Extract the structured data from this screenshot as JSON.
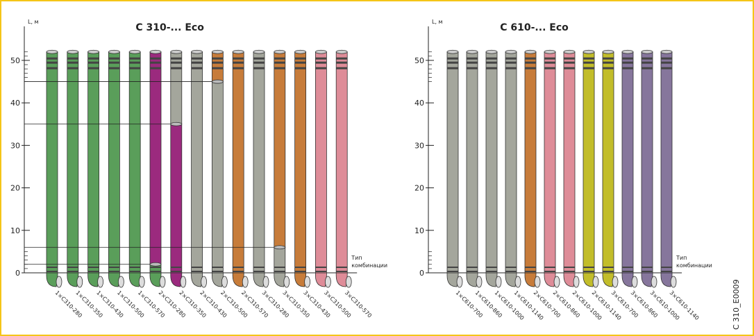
{
  "border_color": "#f5c518",
  "figure_code": "C 310_E0009",
  "chart_data": [
    {
      "type": "pipes",
      "title": "C 310-... Eco",
      "y_label": "L, м",
      "x_label": [
        "Тип",
        "комбинации"
      ],
      "ylim": [
        0,
        58
      ],
      "yticks": [
        0,
        10,
        20,
        30,
        40,
        50
      ],
      "categories": [
        "1×C310-280",
        "1×C310-350",
        "1×C310-430",
        "1×C310-500",
        "1×C310-570",
        "2×C310-280",
        "2×C310-350",
        "2×C310-430",
        "2×C310-500",
        "2×C310-570",
        "3×C310-280",
        "3×C310-350",
        "3×C310-430",
        "3×C310-500",
        "3×C310-570"
      ],
      "pipes": [
        {
          "segments": [
            {
              "value": 52,
              "color": "#5a9e5a"
            }
          ]
        },
        {
          "segments": [
            {
              "value": 52,
              "color": "#5a9e5a"
            }
          ]
        },
        {
          "segments": [
            {
              "value": 52,
              "color": "#5a9e5a"
            }
          ]
        },
        {
          "segments": [
            {
              "value": 52,
              "color": "#5a9e5a"
            }
          ]
        },
        {
          "segments": [
            {
              "value": 52,
              "color": "#5a9e5a"
            }
          ]
        },
        {
          "segments": [
            {
              "value": 2,
              "color": "#5a9e5a"
            },
            {
              "value": 50,
              "color": "#9b2a7e"
            }
          ]
        },
        {
          "segments": [
            {
              "value": 35,
              "color": "#9b2a7e"
            },
            {
              "value": 17,
              "color": "#a4a69c"
            }
          ]
        },
        {
          "segments": [
            {
              "value": 52,
              "color": "#a4a69c"
            }
          ]
        },
        {
          "segments": [
            {
              "value": 45,
              "color": "#a4a69c"
            },
            {
              "value": 7,
              "color": "#c77c3a"
            }
          ]
        },
        {
          "segments": [
            {
              "value": 52,
              "color": "#c77c3a"
            }
          ]
        },
        {
          "segments": [
            {
              "value": 52,
              "color": "#a4a69c"
            }
          ]
        },
        {
          "segments": [
            {
              "value": 6,
              "color": "#a4a69c"
            },
            {
              "value": 46,
              "color": "#c77c3a"
            }
          ]
        },
        {
          "segments": [
            {
              "value": 52,
              "color": "#c77c3a"
            }
          ]
        },
        {
          "segments": [
            {
              "value": 52,
              "color": "#de8c98"
            }
          ]
        },
        {
          "segments": [
            {
              "value": 52,
              "color": "#de8c98"
            }
          ]
        }
      ]
    },
    {
      "type": "pipes",
      "title": "C 610-... Eco",
      "y_label": "L, м",
      "x_label": [
        "Тип",
        "комбинации"
      ],
      "ylim": [
        0,
        58
      ],
      "yticks": [
        0,
        10,
        20,
        30,
        40,
        50
      ],
      "categories": [
        "1×C610-700",
        "1×C610-860",
        "1×C610-1000",
        "1×C610-1140",
        "2×C610-700",
        "2×C610-860",
        "2×C610-1000",
        "2×C610-1140",
        "3×C610-700",
        "3×C610-860",
        "3×C610-1000",
        "3×C610-1140"
      ],
      "pipes": [
        {
          "segments": [
            {
              "value": 52,
              "color": "#a4a69c"
            }
          ]
        },
        {
          "segments": [
            {
              "value": 52,
              "color": "#a4a69c"
            }
          ]
        },
        {
          "segments": [
            {
              "value": 52,
              "color": "#a4a69c"
            }
          ]
        },
        {
          "segments": [
            {
              "value": 52,
              "color": "#a4a69c"
            }
          ]
        },
        {
          "segments": [
            {
              "value": 52,
              "color": "#c77c3a"
            }
          ]
        },
        {
          "segments": [
            {
              "value": 52,
              "color": "#de8c98"
            }
          ]
        },
        {
          "segments": [
            {
              "value": 52,
              "color": "#de8c98"
            }
          ]
        },
        {
          "segments": [
            {
              "value": 52,
              "color": "#c2bd2a"
            }
          ]
        },
        {
          "segments": [
            {
              "value": 52,
              "color": "#c2bd2a"
            }
          ]
        },
        {
          "segments": [
            {
              "value": 52,
              "color": "#86769c"
            }
          ]
        },
        {
          "segments": [
            {
              "value": 52,
              "color": "#86769c"
            }
          ]
        },
        {
          "segments": [
            {
              "value": 52,
              "color": "#86769c"
            }
          ]
        }
      ]
    }
  ]
}
